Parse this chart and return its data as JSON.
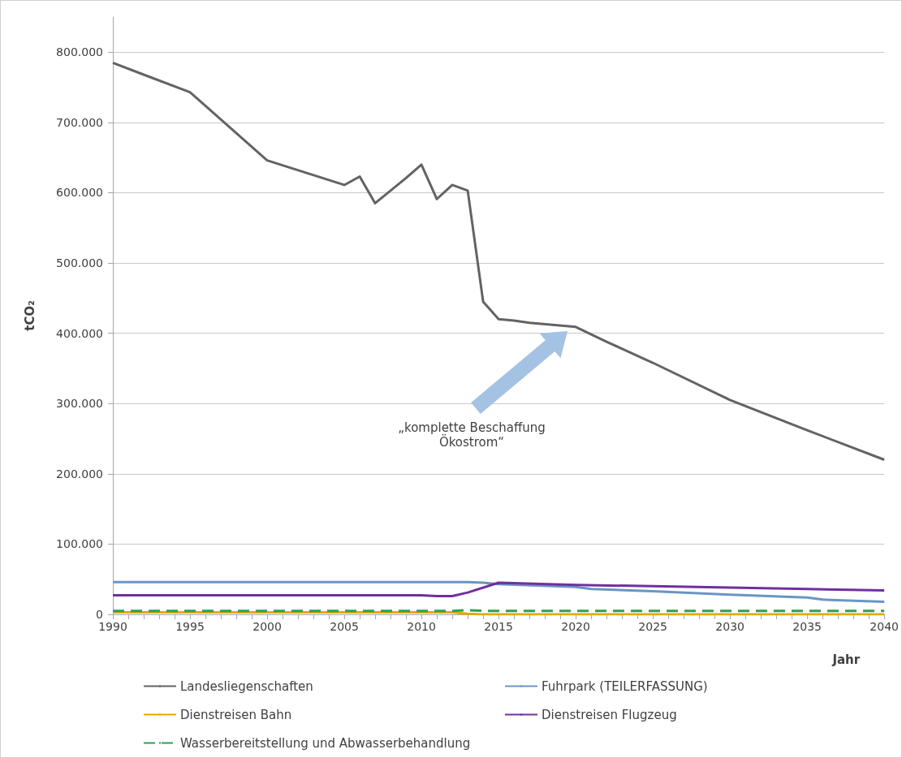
{
  "chart_data": {
    "type": "line",
    "xlabel": "Jahr",
    "ylabel": "tCO₂",
    "xlim": [
      1990,
      2040
    ],
    "ylim": [
      0,
      850000
    ],
    "xticks": [
      1990,
      {
        "value": 1991,
        "label": null
      },
      {
        "value": 1992,
        "label": null
      },
      {
        "value": 1993,
        "label": null
      },
      {
        "value": 1994,
        "label": null
      },
      1995,
      {
        "value": 1996,
        "label": null
      },
      {
        "value": 1997,
        "label": null
      },
      {
        "value": 1998,
        "label": null
      },
      {
        "value": 1999,
        "label": null
      },
      2000,
      {
        "value": 2001,
        "label": null
      },
      {
        "value": 2002,
        "label": null
      },
      {
        "value": 2003,
        "label": null
      },
      {
        "value": 2004,
        "label": null
      },
      2005,
      {
        "value": 2006,
        "label": null
      },
      {
        "value": 2007,
        "label": null
      },
      {
        "value": 2008,
        "label": null
      },
      {
        "value": 2009,
        "label": null
      },
      2010,
      {
        "value": 2011,
        "label": null
      },
      {
        "value": 2012,
        "label": null
      },
      {
        "value": 2013,
        "label": null
      },
      {
        "value": 2014,
        "label": null
      },
      2015,
      {
        "value": 2016,
        "label": null
      },
      {
        "value": 2017,
        "label": null
      },
      {
        "value": 2018,
        "label": null
      },
      {
        "value": 2019,
        "label": null
      },
      2020,
      {
        "value": 2021,
        "label": null
      },
      {
        "value": 2022,
        "label": null
      },
      {
        "value": 2023,
        "label": null
      },
      {
        "value": 2024,
        "label": null
      },
      2025,
      {
        "value": 2026,
        "label": null
      },
      {
        "value": 2027,
        "label": null
      },
      {
        "value": 2028,
        "label": null
      },
      {
        "value": 2029,
        "label": null
      },
      2030,
      {
        "value": 2031,
        "label": null
      },
      {
        "value": 2032,
        "label": null
      },
      {
        "value": 2033,
        "label": null
      },
      {
        "value": 2034,
        "label": null
      },
      2035,
      {
        "value": 2036,
        "label": null
      },
      {
        "value": 2037,
        "label": null
      },
      {
        "value": 2038,
        "label": null
      },
      {
        "value": 2039,
        "label": null
      },
      2040
    ],
    "yticks": [
      0,
      {
        "value": 100000,
        "label": "100.000"
      },
      {
        "value": 200000,
        "label": "200.000"
      },
      {
        "value": 300000,
        "label": "300.000"
      },
      {
        "value": 400000,
        "label": "400.000"
      },
      {
        "value": 500000,
        "label": "500.000"
      },
      {
        "value": 600000,
        "label": "600.000"
      },
      {
        "value": 700000,
        "label": "700.000"
      },
      {
        "value": 800000,
        "label": "800.000"
      }
    ],
    "grid": "y",
    "legend": "bottom",
    "annotations": [
      "„komplette Beschaffung\nÖkostrom“"
    ],
    "series": [
      {
        "name": "Landesliegenschaften",
        "color": "#636363",
        "x": [
          1990,
          1992,
          1995,
          2000,
          2005,
          2006,
          2007,
          2008,
          2009,
          2010,
          2011,
          2012,
          2013,
          2014,
          2015,
          2016,
          2017,
          2020,
          2022,
          2025,
          2030,
          2035,
          2040
        ],
        "values": [
          785000,
          768000,
          743000,
          646000,
          611000,
          623000,
          585000,
          603000,
          621000,
          640000,
          591000,
          611000,
          603000,
          445000,
          420000,
          418000,
          415000,
          409000,
          388000,
          358000,
          305000,
          262000,
          220000
        ]
      },
      {
        "name": "Fuhrpark (TEILERFASSUNG)",
        "color": "#6b95c4",
        "x": [
          1990,
          2013,
          2014,
          2015,
          2020,
          2021,
          2025,
          2030,
          2035,
          2036,
          2040
        ],
        "values": [
          46000,
          46000,
          45000,
          43000,
          39000,
          36000,
          33000,
          28000,
          24000,
          21000,
          18000
        ]
      },
      {
        "name": "Dienstreisen Bahn",
        "color": "#e8a800",
        "x": [
          1990,
          2012,
          2013,
          2014,
          2040
        ],
        "values": [
          3000,
          3000,
          1000,
          0,
          0
        ]
      },
      {
        "name": "Dienstreisen Flugzeug",
        "color": "#7030a0",
        "x": [
          1990,
          2010,
          2011,
          2012,
          2013,
          2015,
          2020,
          2025,
          2030,
          2035,
          2040
        ],
        "values": [
          27000,
          27000,
          26000,
          26000,
          31000,
          45000,
          42000,
          40000,
          38000,
          36000,
          34000
        ]
      },
      {
        "name": "Wasserbereitstellung und Abwasserbehandlung",
        "color": "#2ca05a",
        "line_style": "dashed",
        "x": [
          1990,
          2012,
          2013,
          2014,
          2040
        ],
        "values": [
          5000,
          5000,
          6000,
          5000,
          5000
        ]
      }
    ]
  }
}
